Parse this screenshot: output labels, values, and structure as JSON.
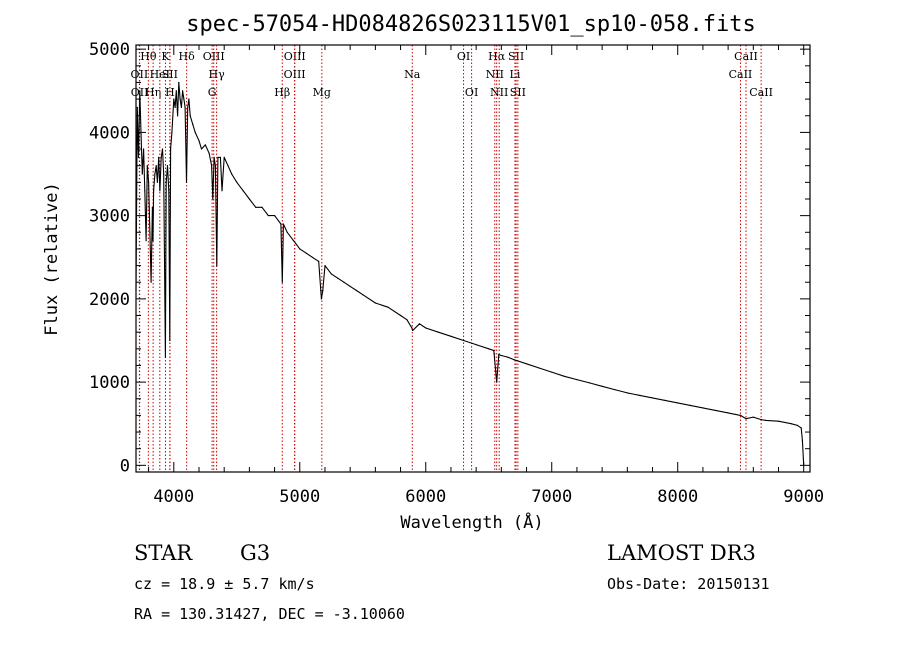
{
  "chart_data": {
    "type": "line",
    "title": "spec-57054-HD084826S023115V01_sp10-058.fits",
    "xlabel": "Wavelength (Å)",
    "ylabel": "Flux (relative)",
    "xlim": [
      3700,
      9050
    ],
    "ylim": [
      -80,
      5050
    ],
    "xticks": [
      4000,
      5000,
      6000,
      7000,
      8000,
      9000
    ],
    "yticks": [
      0,
      1000,
      2000,
      3000,
      4000,
      5000
    ],
    "series": [
      {
        "name": "flux",
        "x": [
          3700,
          3710,
          3720,
          3730,
          3740,
          3750,
          3760,
          3770,
          3780,
          3790,
          3800,
          3810,
          3820,
          3830,
          3835,
          3840,
          3850,
          3860,
          3870,
          3880,
          3890,
          3900,
          3910,
          3920,
          3933,
          3940,
          3950,
          3960,
          3968,
          3975,
          3985,
          4000,
          4010,
          4020,
          4030,
          4040,
          4050,
          4060,
          4070,
          4080,
          4090,
          4101,
          4110,
          4120,
          4130,
          4150,
          4170,
          4200,
          4220,
          4250,
          4280,
          4300,
          4310,
          4320,
          4330,
          4341,
          4350,
          4370,
          4383,
          4400,
          4430,
          4460,
          4500,
          4550,
          4600,
          4650,
          4700,
          4750,
          4800,
          4850,
          4861,
          4870,
          4900,
          4950,
          5000,
          5050,
          5100,
          5150,
          5167,
          5172,
          5183,
          5200,
          5250,
          5300,
          5350,
          5400,
          5450,
          5500,
          5600,
          5700,
          5800,
          5850,
          5890,
          5896,
          5950,
          6000,
          6100,
          6200,
          6300,
          6400,
          6500,
          6540,
          6563,
          6580,
          6600,
          6650,
          6700,
          6800,
          6900,
          7000,
          7100,
          7200,
          7300,
          7400,
          7500,
          7600,
          7700,
          7800,
          7900,
          8000,
          8100,
          8200,
          8300,
          8400,
          8498,
          8542,
          8600,
          8662,
          8700,
          8800,
          8900,
          8950,
          8980,
          8990,
          9000
        ],
        "y": [
          2100,
          4300,
          3700,
          4500,
          4000,
          3500,
          3800,
          3300,
          2700,
          3600,
          3400,
          2800,
          2200,
          3100,
          2700,
          3300,
          3500,
          3600,
          3400,
          3700,
          3300,
          3700,
          3800,
          3500,
          1300,
          3400,
          3600,
          3300,
          1500,
          3800,
          4000,
          4400,
          4300,
          4500,
          4200,
          4600,
          4400,
          4300,
          4500,
          4400,
          4300,
          3400,
          4300,
          4400,
          4200,
          4100,
          4000,
          3900,
          3800,
          3850,
          3750,
          3600,
          3200,
          3700,
          3600,
          2400,
          3700,
          3700,
          3300,
          3700,
          3600,
          3500,
          3400,
          3300,
          3200,
          3100,
          3100,
          3000,
          3000,
          2900,
          2200,
          2900,
          2800,
          2700,
          2600,
          2550,
          2500,
          2450,
          2100,
          2000,
          2100,
          2400,
          2300,
          2250,
          2200,
          2150,
          2100,
          2050,
          1950,
          1900,
          1800,
          1750,
          1650,
          1620,
          1700,
          1650,
          1600,
          1550,
          1500,
          1450,
          1400,
          1380,
          1000,
          1330,
          1320,
          1300,
          1270,
          1220,
          1170,
          1120,
          1070,
          1030,
          990,
          950,
          910,
          870,
          840,
          810,
          780,
          750,
          720,
          690,
          660,
          630,
          600,
          560,
          580,
          550,
          540,
          530,
          500,
          480,
          450,
          300,
          0
        ]
      }
    ],
    "lines": [
      {
        "label": "Hθ",
        "x": 3798,
        "tier": 1
      },
      {
        "label": "OII",
        "x": 3727,
        "tier": 2
      },
      {
        "label": "OII",
        "x": 3729,
        "tier": 3
      },
      {
        "label": "Hη",
        "x": 3836,
        "tier": 3
      },
      {
        "label": "HeI",
        "x": 3889,
        "tier": 2
      },
      {
        "label": "K",
        "x": 3934,
        "tier": 1
      },
      {
        "label": "SII",
        "x": 3969,
        "tier": 2
      },
      {
        "label": "H",
        "x": 3969,
        "tier": 3
      },
      {
        "label": "Hδ",
        "x": 4102,
        "tier": 1
      },
      {
        "label": "OIII",
        "x": 4317,
        "tier": 1
      },
      {
        "label": "Hγ",
        "x": 4340,
        "tier": 2
      },
      {
        "label": "G",
        "x": 4304,
        "tier": 3
      },
      {
        "label": "OIII",
        "x": 4960,
        "tier": 1
      },
      {
        "label": "OIII",
        "x": 4959,
        "tier": 2
      },
      {
        "label": "Hβ",
        "x": 4861,
        "tier": 3
      },
      {
        "label": "Mg",
        "x": 5175,
        "tier": 3
      },
      {
        "label": "Na",
        "x": 5893,
        "tier": 2
      },
      {
        "label": "OI",
        "x": 6300,
        "tier": 1
      },
      {
        "label": "OI",
        "x": 6364,
        "tier": 3
      },
      {
        "label": "Hα",
        "x": 6563,
        "tier": 1
      },
      {
        "label": "SII",
        "x": 6717,
        "tier": 1
      },
      {
        "label": "NII",
        "x": 6548,
        "tier": 2
      },
      {
        "label": "Li",
        "x": 6708,
        "tier": 2
      },
      {
        "label": "NII",
        "x": 6583,
        "tier": 3
      },
      {
        "label": "SII",
        "x": 6731,
        "tier": 3
      },
      {
        "label": "CaII",
        "x": 8542,
        "tier": 1
      },
      {
        "label": "CaII",
        "x": 8498,
        "tier": 2
      },
      {
        "label": "CaII",
        "x": 8662,
        "tier": 3
      }
    ],
    "colors": {
      "data": "#000000",
      "line_markers": "#cc0000",
      "axes": "#000000"
    }
  },
  "info": {
    "obj_class": "STAR",
    "subclass": "G3",
    "survey": "LAMOST DR3",
    "cz": "cz = 18.9 ± 5.7 km/s",
    "obs_date": "Obs-Date: 20150131",
    "radec": "RA = 130.31427, DEC =  -3.10060"
  }
}
